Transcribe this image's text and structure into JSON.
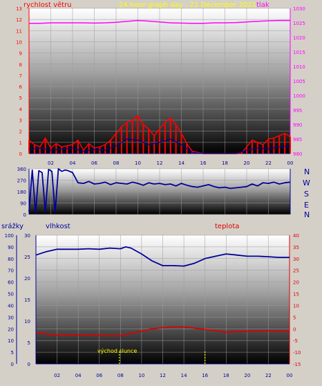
{
  "header": {
    "left_title": "rychlost větru",
    "center_title": "24 hour graph day : 21 December 2021",
    "right_title": "tlak"
  },
  "panel3": {
    "left_label": "srážky",
    "mid_label": "vlhkost",
    "right_label": "teplota",
    "sunrise_label": "východ slunce"
  },
  "compass": [
    "N",
    "W",
    "S",
    "E",
    "N"
  ],
  "colors": {
    "wind": "#ff0000",
    "gust": "#000099",
    "pressure": "#ff00ff",
    "direction": "#000099",
    "humidity": "#000099",
    "temperature": "#dd0000",
    "left_axis": "#ff0000",
    "right_axis_top": "#ff00ff",
    "center_title": "#ffff00",
    "humid_axis": "#000099",
    "sun": "#ffff00"
  },
  "chart_data": [
    {
      "type": "line",
      "xlabel": "",
      "x_ticks": [
        "02",
        "04",
        "06",
        "08",
        "10",
        "12",
        "14",
        "16",
        "18",
        "20",
        "22",
        "00"
      ],
      "y_left": {
        "label": "rychlost větru",
        "range": [
          0,
          13
        ],
        "ticks": [
          "0",
          "1",
          "2",
          "3",
          "4",
          "5",
          "6",
          "7",
          "8",
          "9",
          "10",
          "11",
          "12",
          "13"
        ]
      },
      "y_right": {
        "label": "tlak",
        "range": [
          980,
          1030
        ],
        "ticks": [
          "980",
          "985",
          "990",
          "995",
          "1000",
          "1005",
          "1010",
          "1015",
          "1020",
          "1025",
          "1030"
        ]
      },
      "series": [
        {
          "name": "rychlost větru",
          "axis": "left",
          "x": [
            0,
            0.5,
            1,
            1.5,
            2,
            2.5,
            3,
            3.5,
            4,
            4.5,
            5,
            5.5,
            6,
            6.5,
            7,
            7.5,
            8,
            8.5,
            9,
            9.5,
            10,
            10.5,
            11,
            11.5,
            12,
            12.5,
            13,
            13.5,
            14,
            14.5,
            15,
            15.5,
            16,
            16.5,
            17,
            17.5,
            18,
            18.5,
            19,
            19.5,
            20,
            20.5,
            21,
            21.5,
            22,
            22.5,
            23,
            23.5,
            24
          ],
          "values": [
            1.2,
            0.8,
            0.6,
            1.4,
            0.5,
            0.9,
            0.6,
            0.7,
            0.8,
            1.2,
            0.3,
            0.9,
            0.5,
            0.6,
            0.8,
            1.2,
            1.8,
            2.4,
            2.8,
            3.0,
            3.4,
            2.6,
            2.2,
            1.6,
            2.2,
            2.8,
            3.2,
            2.6,
            1.8,
            0.9,
            0.2,
            0.1,
            0,
            0,
            0,
            0,
            0,
            0,
            0,
            0,
            0.6,
            1.2,
            1.0,
            0.8,
            1.3,
            1.4,
            1.6,
            1.8,
            1.5
          ]
        },
        {
          "name": "nárazy",
          "axis": "left",
          "x": [
            0,
            1,
            2,
            3,
            4,
            5,
            6,
            7,
            8,
            9,
            10,
            11,
            12,
            13,
            14,
            15,
            16,
            17,
            18,
            19,
            20,
            21,
            22,
            23,
            24
          ],
          "values": [
            0.4,
            0.5,
            0.3,
            0.4,
            0.5,
            0.2,
            0.4,
            0.3,
            0.7,
            1.3,
            1.2,
            0.8,
            1.0,
            1.3,
            0.8,
            0.1,
            0,
            0,
            0,
            0,
            0.3,
            0.5,
            0.4,
            0.6,
            0.7
          ]
        },
        {
          "name": "tlak",
          "axis": "right",
          "x": [
            0,
            1,
            2,
            3,
            4,
            5,
            6,
            7,
            8,
            9,
            10,
            11,
            12,
            13,
            14,
            15,
            16,
            17,
            18,
            19,
            20,
            21,
            22,
            23,
            24
          ],
          "values": [
            1024.8,
            1024.8,
            1025,
            1025,
            1025,
            1025,
            1024.9,
            1025,
            1025.2,
            1025.5,
            1025.8,
            1025.6,
            1025.3,
            1025,
            1024.9,
            1024.8,
            1024.8,
            1025,
            1025,
            1025.1,
            1025.3,
            1025.5,
            1025.7,
            1025.8,
            1025.8
          ]
        }
      ]
    },
    {
      "type": "line",
      "x_ticks": [],
      "y": {
        "range": [
          0,
          360
        ],
        "ticks": [
          "0",
          "90",
          "180",
          "270",
          "360"
        ]
      },
      "series": [
        {
          "name": "směr větru",
          "x": [
            0,
            0.3,
            0.6,
            0.9,
            1.2,
            1.5,
            1.8,
            2.1,
            2.4,
            2.7,
            3,
            3.3,
            3.6,
            4,
            4.5,
            5,
            5.5,
            6,
            6.5,
            7,
            7.5,
            8,
            8.5,
            9,
            9.5,
            10,
            10.5,
            11,
            11.5,
            12,
            12.5,
            13,
            13.5,
            14,
            14.5,
            15,
            15.5,
            16,
            16.5,
            17,
            17.5,
            18,
            18.5,
            19,
            19.5,
            20,
            20.5,
            21,
            21.5,
            22,
            22.5,
            23,
            23.5,
            24
          ],
          "values": [
            20,
            350,
            10,
            345,
            330,
            20,
            355,
            340,
            15,
            360,
            340,
            350,
            345,
            330,
            250,
            245,
            260,
            240,
            245,
            255,
            235,
            250,
            245,
            240,
            255,
            245,
            230,
            250,
            240,
            245,
            235,
            240,
            225,
            245,
            230,
            220,
            215,
            225,
            235,
            220,
            210,
            215,
            205,
            210,
            215,
            220,
            240,
            225,
            250,
            245,
            255,
            240,
            250,
            255
          ]
        }
      ]
    },
    {
      "type": "line",
      "x_ticks": [
        "02",
        "04",
        "06",
        "08",
        "10",
        "12",
        "14",
        "16",
        "18",
        "20",
        "22",
        "00"
      ],
      "y_rain": {
        "label": "srážky",
        "range": [
          0,
          100
        ],
        "ticks": [
          "0",
          "5",
          "10",
          "20",
          "30",
          "40",
          "50",
          "60",
          "70",
          "80",
          "90",
          "100"
        ]
      },
      "y_humid": {
        "label": "vlhkost",
        "range": [
          0,
          30
        ],
        "ticks": [
          "0",
          "5",
          "10",
          "15",
          "20",
          "25",
          "30"
        ]
      },
      "y_temp": {
        "label": "teplota",
        "range": [
          -15,
          40
        ],
        "ticks": [
          "-15",
          "-10",
          "-5",
          "0",
          "5",
          "10",
          "15",
          "20",
          "25",
          "30",
          "35",
          "40"
        ]
      },
      "sunrise_hour": 7.9,
      "sunset_hour": 16.0,
      "series": [
        {
          "name": "vlhkost",
          "axis": "temp",
          "x": [
            0,
            1,
            2,
            3,
            4,
            5,
            6,
            7,
            8,
            8.5,
            9,
            10,
            11,
            12,
            13,
            14,
            15,
            16,
            17,
            18,
            19,
            20,
            21,
            22,
            23,
            24
          ],
          "values": [
            31.5,
            33,
            34,
            34,
            34,
            34.2,
            34,
            34.5,
            34.2,
            35,
            34.5,
            32,
            29,
            27,
            27,
            26.8,
            28,
            30,
            31,
            32,
            31.5,
            31,
            31,
            30.8,
            30.5,
            30.5
          ]
        },
        {
          "name": "teplota",
          "axis": "temp",
          "x": [
            0,
            1,
            2,
            3,
            4,
            5,
            6,
            7,
            8,
            9,
            10,
            11,
            12,
            13,
            14,
            15,
            16,
            17,
            18,
            19,
            20,
            21,
            22,
            23,
            24
          ],
          "values": [
            -1.5,
            -2.2,
            -2.8,
            -2.8,
            -2.6,
            -2.8,
            -2.8,
            -2.9,
            -3.0,
            -2.0,
            -1.0,
            0,
            0.5,
            0.8,
            0.8,
            0.3,
            -0.3,
            -0.8,
            -1.5,
            -1.2,
            -1.0,
            -1.0,
            -0.8,
            -1.0,
            -1.0
          ]
        }
      ]
    }
  ]
}
